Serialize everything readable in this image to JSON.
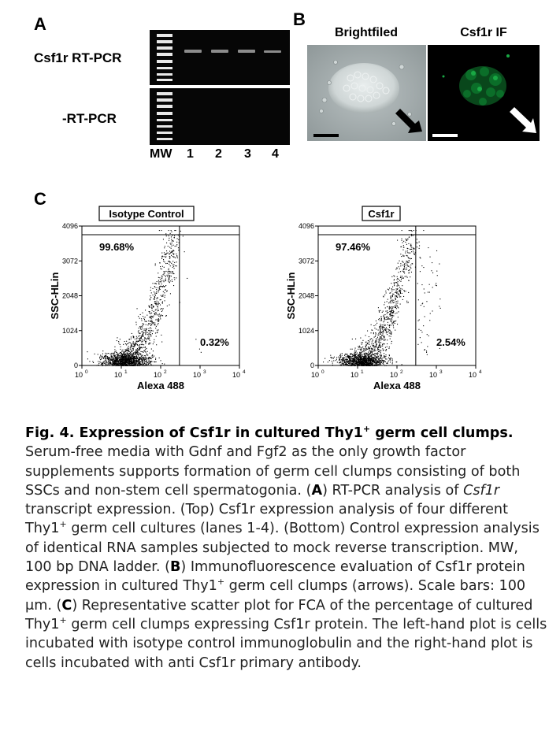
{
  "panel_a": {
    "letter": "A",
    "top_label": "Csf1r RT-PCR",
    "bottom_label": "-RT-PCR",
    "lane_labels": [
      "MW",
      "1",
      "2",
      "3",
      "4"
    ]
  },
  "panel_b": {
    "letter": "B",
    "left_title": "Brightfiled",
    "right_title": "Csf1r IF"
  },
  "panel_c": {
    "letter": "C"
  },
  "chart_data": [
    {
      "type": "scatter",
      "title": "Isotype Control",
      "xlabel": "Alexa 488",
      "ylabel": "SSC-HLin",
      "x_scale": "log",
      "xlim": [
        1,
        10000
      ],
      "ylim": [
        0,
        4096
      ],
      "x_ticks": [
        "10",
        "10",
        "10",
        "10",
        "10"
      ],
      "x_tick_exponents": [
        "0",
        "1",
        "2",
        "3",
        "4"
      ],
      "y_ticks": [
        "0",
        "1024",
        "2048",
        "3072",
        "4096"
      ],
      "gate_x": 300,
      "regions": [
        {
          "label": "99.68%",
          "value": 99.68
        },
        {
          "label": "0.32%",
          "value": 0.32
        }
      ]
    },
    {
      "type": "scatter",
      "title": "Csf1r",
      "xlabel": "Alexa 488",
      "ylabel": "SSC-HLin",
      "x_scale": "log",
      "xlim": [
        1,
        10000
      ],
      "ylim": [
        0,
        4096
      ],
      "x_ticks": [
        "10",
        "10",
        "10",
        "10",
        "10"
      ],
      "x_tick_exponents": [
        "0",
        "1",
        "2",
        "3",
        "4"
      ],
      "y_ticks": [
        "0",
        "1024",
        "2048",
        "3072",
        "4096"
      ],
      "gate_x": 300,
      "regions": [
        {
          "label": "97.46%",
          "value": 97.46
        },
        {
          "label": "2.54%",
          "value": 2.54
        }
      ]
    }
  ],
  "caption": {
    "title": "Fig. 4. Expression of Csf1r in cultured Thy1",
    "title_sup": "+",
    "title_end": " germ cell clumps.",
    "p1": "Serum-free media with Gdnf and Fgf2 as the only growth factor supplements supports formation of germ cell clumps consisting of both SSCs and non-stem cell spermatogonia. (",
    "p1_a": "A",
    "p2": ") RT-PCR analysis of ",
    "p2_em": "Csf1r",
    "p3": " transcript expression. (Top) Csf1r expression analysis of four different Thy1",
    "p3_sup": "+",
    "p4": " germ cell cultures (lanes 1-4). (Bottom) Control expression analysis of identical RNA samples subjected to mock reverse transcription. MW, 100 bp DNA ladder. (",
    "p4_b": "B",
    "p5": ") Immunofluorescence evaluation of Csf1r protein expression in cultured Thy1",
    "p5_sup": "+",
    "p6": " germ cell clumps (arrows). Scale bars: 100 μm. (",
    "p6_c": "C",
    "p7": ") Representative scatter plot for FCA of the percentage of cultured Thy1",
    "p7_sup": "+",
    "p8": " germ cell clumps expressing Csf1r protein. The left-hand plot is cells incubated with isotype control immunoglobulin and the right-hand plot is cells incubated with anti Csf1r primary antibody."
  }
}
